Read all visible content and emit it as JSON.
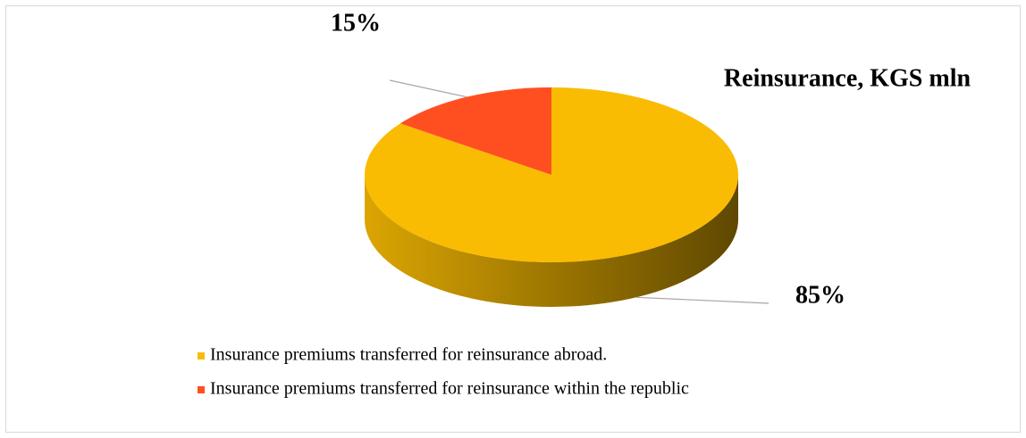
{
  "chart_data": {
    "type": "pie",
    "title": "Reinsurance, KGS mln",
    "categories": [
      "Insurance premiums transferred for reinsurance abroad.",
      "Insurance premiums transferred for reinsurance within the republic"
    ],
    "values": [
      85,
      15
    ],
    "value_labels": [
      "85%",
      "15%"
    ],
    "colors": [
      "#F9BC02",
      "#FF4F21"
    ]
  }
}
